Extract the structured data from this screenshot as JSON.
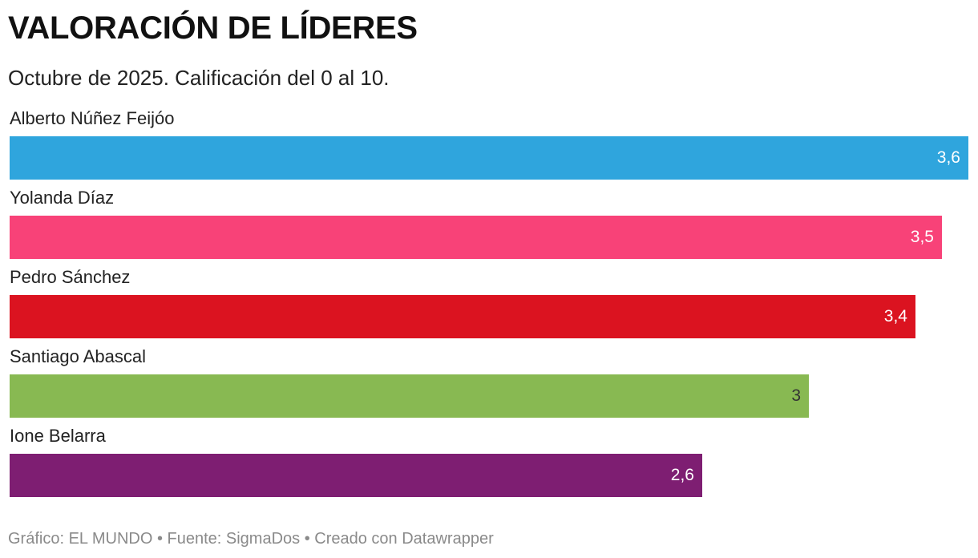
{
  "title": "VALORACIÓN DE LÍDERES",
  "subtitle": "Octubre de 2025. Calificación del 0 al 10.",
  "footer": "Gráfico: EL MUNDO • Fuente: SigmaDos • Creado con Datawrapper",
  "chart_data": {
    "type": "bar",
    "orientation": "horizontal",
    "title": "VALORACIÓN DE LÍDERES",
    "subtitle": "Octubre de 2025. Calificación del 0 al 10.",
    "categories": [
      "Alberto Núñez Feijóo",
      "Yolanda Díaz",
      "Pedro Sánchez",
      "Santiago Abascal",
      "Ione Belarra"
    ],
    "values": [
      3.6,
      3.5,
      3.4,
      3,
      2.6
    ],
    "value_labels": [
      "3,6",
      "3,5",
      "3,4",
      "3",
      "2,6"
    ],
    "colors": [
      "#2fa5dd",
      "#f84278",
      "#db1320",
      "#88b952",
      "#7e1e72"
    ],
    "label_colors": [
      "#ffffff",
      "#ffffff",
      "#ffffff",
      "#333333",
      "#ffffff"
    ],
    "xlim": [
      0,
      3.6
    ],
    "grid": false,
    "legend": "none"
  }
}
